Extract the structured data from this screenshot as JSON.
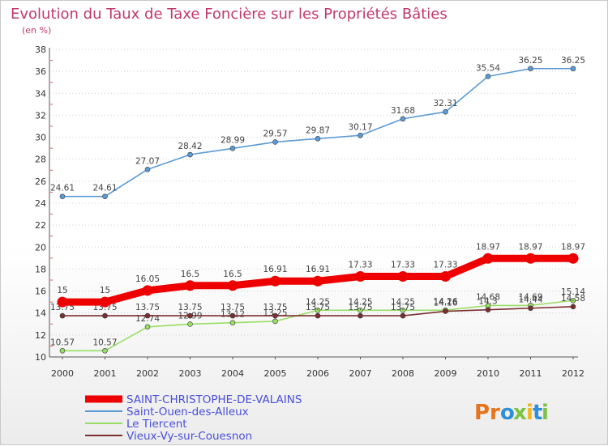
{
  "title": "Evolution du Taux de Taxe Foncière sur les Propriétés Bâties",
  "subtitle": "(en %)",
  "logo": {
    "letters": [
      "P",
      "r",
      "o",
      "x",
      "i",
      "t",
      "i"
    ],
    "colors": [
      "#e8731a",
      "#e8731a",
      "#2f8fd8",
      "#7dc242",
      "#f2b61c",
      "#2f8fd8",
      "#7dc242"
    ]
  },
  "chart_data": {
    "type": "line",
    "title": "Evolution du Taux de Taxe Foncière sur les Propriétés Bâties",
    "ylabel": "(en %)",
    "x": [
      "2000",
      "2001",
      "2002",
      "2003",
      "2004",
      "2005",
      "2006",
      "2007",
      "2008",
      "2009",
      "2010",
      "2011",
      "2012"
    ],
    "ylim": [
      10,
      38
    ],
    "yticks": [
      "10",
      "12",
      "14",
      "16",
      "18",
      "20",
      "22",
      "24",
      "26",
      "28",
      "30",
      "32",
      "34",
      "36",
      "38"
    ],
    "grid": "horizontal dotted",
    "legend": "bottom-left",
    "series": [
      {
        "name": "SAINT-CHRISTOPHE-DE-VALAINS",
        "color": "#ee0000",
        "values": [
          15,
          15,
          16.05,
          16.5,
          16.5,
          16.91,
          16.91,
          17.33,
          17.33,
          17.33,
          18.97,
          18.97,
          18.97
        ],
        "labels": [
          "15",
          "15",
          "16.05",
          "16.5",
          "16.5",
          "16.91",
          "16.91",
          "17.33",
          "17.33",
          "17.33",
          "18.97",
          "18.97",
          "18.97"
        ]
      },
      {
        "name": "Saint-Ouen-des-Alleux",
        "color": "#5b9bd5",
        "values": [
          24.61,
          24.61,
          27.07,
          28.42,
          28.99,
          29.57,
          29.87,
          30.17,
          31.68,
          32.31,
          35.54,
          36.25,
          36.25
        ],
        "labels": [
          "24.61",
          "24.61",
          "27.07",
          "28.42",
          "28.99",
          "29.57",
          "29.87",
          "30.17",
          "31.68",
          "32.31",
          "35.54",
          "36.25",
          "36.25"
        ]
      },
      {
        "name": "Le Tiercent",
        "color": "#99dd66",
        "values": [
          10.57,
          10.57,
          12.74,
          12.99,
          13.12,
          13.25,
          14.25,
          14.25,
          14.25,
          14.26,
          14.68,
          14.69,
          15.14
        ],
        "labels": [
          "10.57",
          "10.57",
          "12.74",
          "12.99",
          "13.12",
          "13.25",
          "14.25",
          "14.25",
          "14.25",
          "14.26",
          "14.68",
          "14.69",
          "15.14"
        ]
      },
      {
        "name": "Vieux-Vy-sur-Couesnon",
        "color": "#7a2e2e",
        "values": [
          13.75,
          13.75,
          13.75,
          13.75,
          13.75,
          13.75,
          13.75,
          13.75,
          13.75,
          14.16,
          14.3,
          14.44,
          14.58
        ],
        "labels": [
          "13.75",
          "13.75",
          "13.75",
          "13.75",
          "13.75",
          "13.75",
          "13.75",
          "13.75",
          "13.75",
          "14.16",
          "14.3",
          "14.44",
          "14.58"
        ]
      }
    ]
  }
}
